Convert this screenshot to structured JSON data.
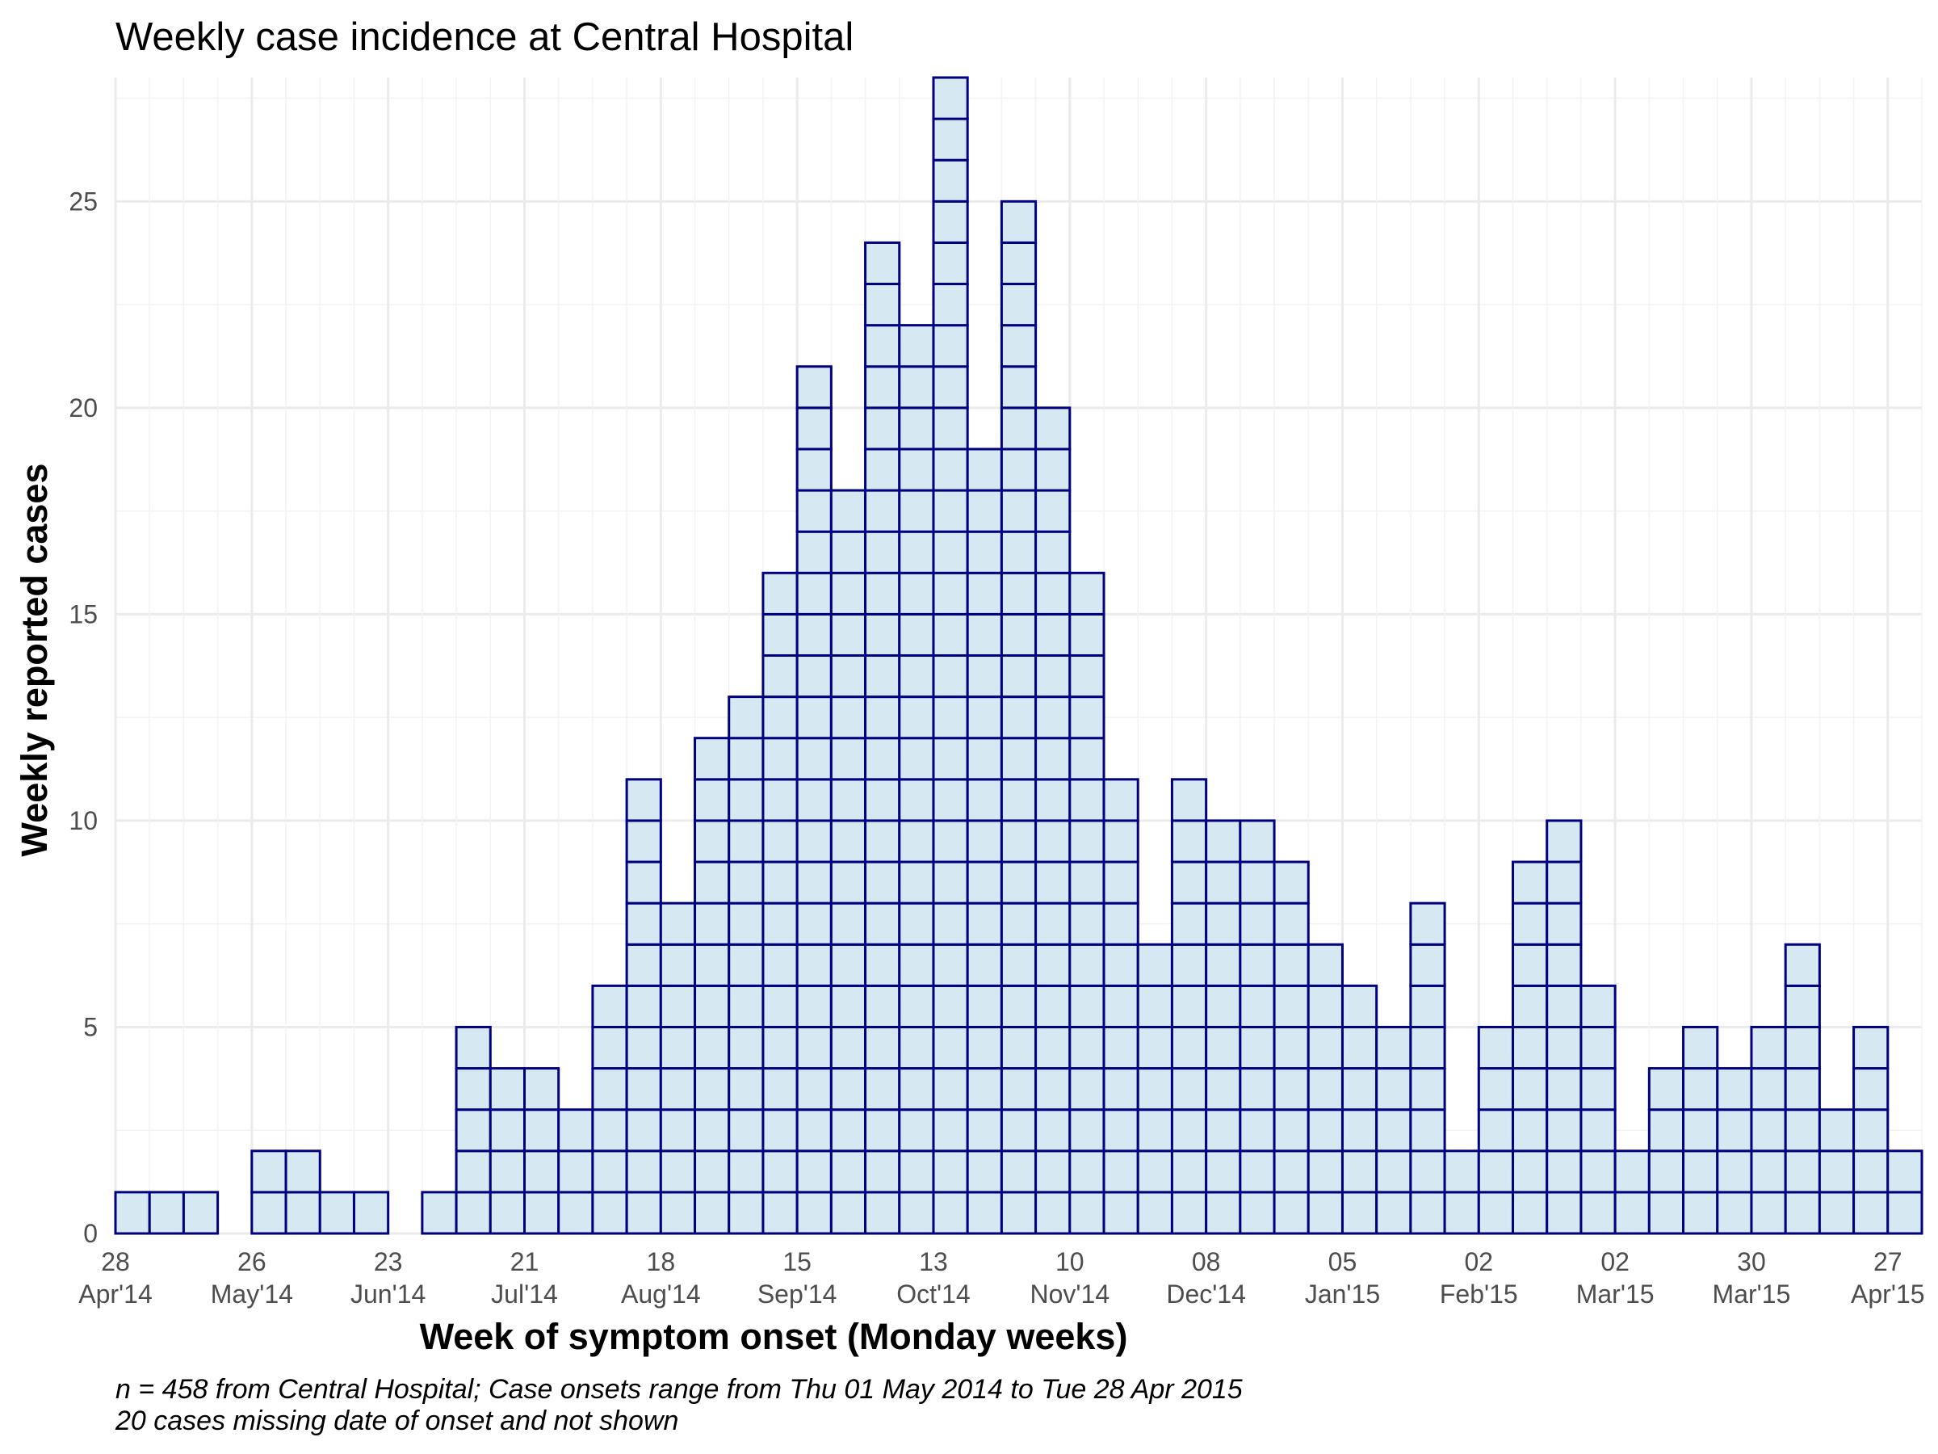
{
  "chart_data": {
    "type": "bar",
    "title": "Weekly case incidence at Central Hospital",
    "xlabel": "Week of symptom onset (Monday weeks)",
    "ylabel": "Weekly reported cases",
    "caption_lines": [
      "n = 458 from Central Hospital; Case onsets range from Thu 01 May 2014 to Tue 28 Apr 2015",
      "20 cases missing date of onset and not shown"
    ],
    "x_start_week": "2014-04-28",
    "week_length_days": 7,
    "values": [
      1,
      1,
      1,
      0,
      2,
      2,
      1,
      1,
      0,
      1,
      5,
      4,
      4,
      3,
      6,
      11,
      8,
      12,
      13,
      16,
      21,
      18,
      24,
      22,
      28,
      19,
      25,
      20,
      16,
      11,
      7,
      11,
      10,
      10,
      9,
      7,
      6,
      5,
      8,
      2,
      5,
      9,
      10,
      6,
      2,
      4,
      5,
      4,
      5,
      7,
      3,
      5,
      2
    ],
    "ylim": [
      0,
      28
    ],
    "y_ticks": [
      0,
      5,
      10,
      15,
      20,
      25
    ],
    "x_ticks": [
      {
        "week": "2014-04-28",
        "day": "28",
        "month": "Apr'14"
      },
      {
        "week": "2014-05-26",
        "day": "26",
        "month": "May'14"
      },
      {
        "week": "2014-06-23",
        "day": "23",
        "month": "Jun'14"
      },
      {
        "week": "2014-07-21",
        "day": "21",
        "month": "Jul'14"
      },
      {
        "week": "2014-08-18",
        "day": "18",
        "month": "Aug'14"
      },
      {
        "week": "2014-09-15",
        "day": "15",
        "month": "Sep'14"
      },
      {
        "week": "2014-10-13",
        "day": "13",
        "month": "Oct'14"
      },
      {
        "week": "2014-11-10",
        "day": "10",
        "month": "Nov'14"
      },
      {
        "week": "2014-12-08",
        "day": "08",
        "month": "Dec'14"
      },
      {
        "week": "2015-01-05",
        "day": "05",
        "month": "Jan'15"
      },
      {
        "week": "2015-02-02",
        "day": "02",
        "month": "Feb'15"
      },
      {
        "week": "2015-03-02",
        "day": "02",
        "month": "Mar'15"
      },
      {
        "week": "2015-03-30",
        "day": "30",
        "month": "Mar'15"
      },
      {
        "week": "2015-04-27",
        "day": "27",
        "month": "Apr'15"
      }
    ],
    "grid": true,
    "legend": "none",
    "colors": {
      "fill": "#d6e9f3",
      "outline": "#000080"
    }
  }
}
